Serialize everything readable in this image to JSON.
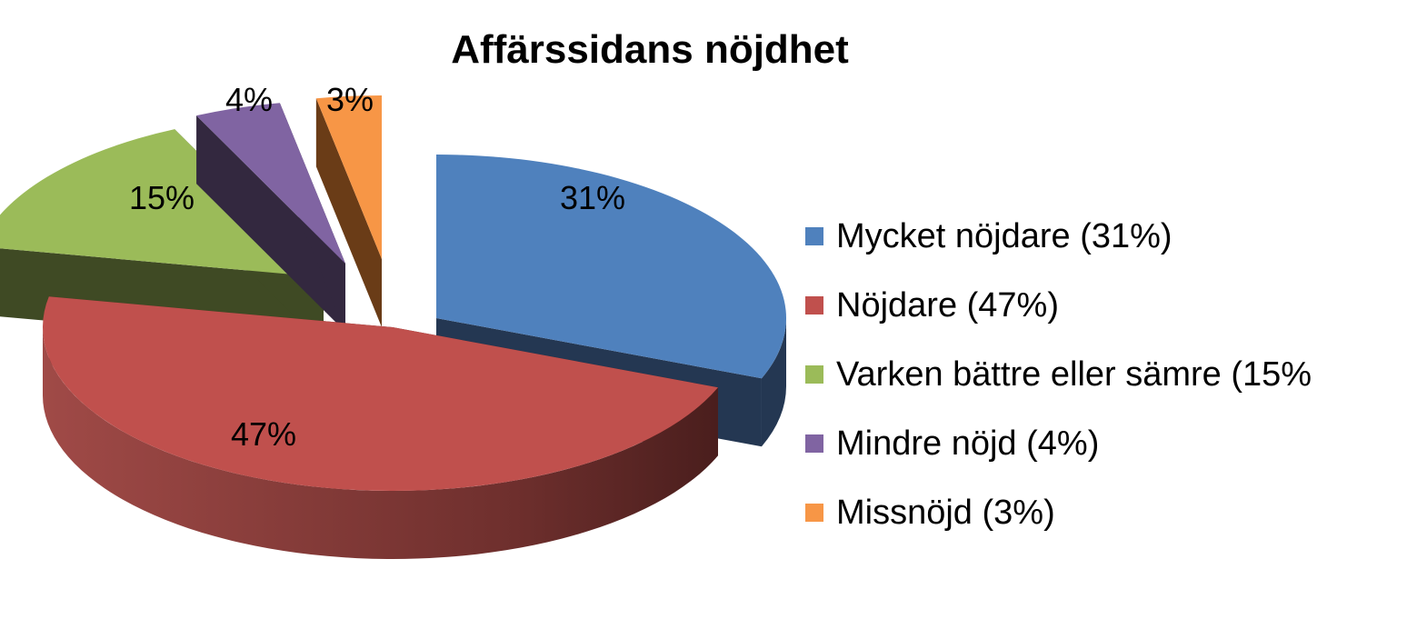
{
  "chart_data": {
    "type": "pie",
    "title": "Affärssidans nöjdhet",
    "legend_position": "right",
    "slices": [
      {
        "label": "Mycket nöjdare (31%)",
        "value": 31,
        "data_label": "31%",
        "color": "#4F81BD"
      },
      {
        "label": "Nöjdare (47%)",
        "value": 47,
        "data_label": "47%",
        "color": "#C0504D"
      },
      {
        "label": "Varken bättre eller sämre (15%",
        "value": 15,
        "data_label": "15%",
        "color": "#9BBB59"
      },
      {
        "label": "Mindre nöjd (4%)",
        "value": 4,
        "data_label": "4%",
        "color": "#8064A2"
      },
      {
        "label": "Missnöjd (3%)",
        "value": 3,
        "data_label": "3%",
        "color": "#F79646"
      }
    ]
  }
}
